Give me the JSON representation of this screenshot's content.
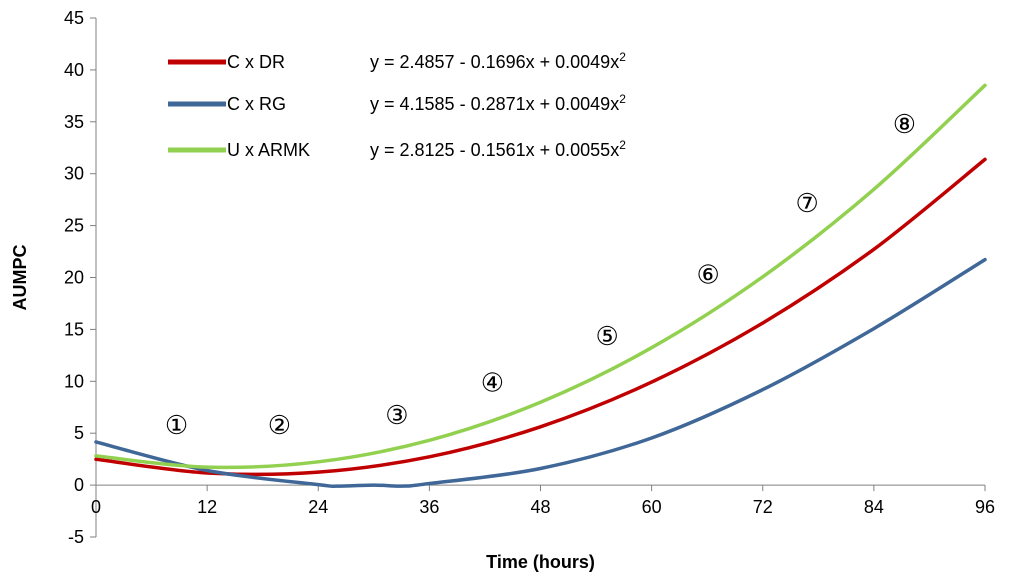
{
  "chart_data": {
    "type": "line",
    "title": "",
    "xlabel": "Time (hours)",
    "ylabel": "AUMPC",
    "xlim": [
      0,
      96
    ],
    "ylim": [
      -5,
      45
    ],
    "x_ticks": [
      0,
      12,
      24,
      36,
      48,
      60,
      72,
      84,
      96
    ],
    "y_ticks": [
      -5,
      0,
      5,
      10,
      15,
      20,
      25,
      30,
      35,
      40,
      45
    ],
    "grid": false,
    "legend_position": "top-left",
    "series": [
      {
        "name": "C x DR",
        "color": "#c00000",
        "equation": {
          "text": "y = 2.4857 - 0.1696x + 0.0049x",
          "sup": "2"
        },
        "x": [
          0,
          12,
          24,
          36,
          48,
          60,
          72,
          84,
          96
        ],
        "y": [
          2.49,
          1.17,
          1.25,
          2.73,
          5.62,
          9.92,
          15.62,
          22.72,
          31.38
        ]
      },
      {
        "name": "C x RG",
        "color": "#3f6797",
        "equation": {
          "text": "y = 4.1585 - 0.2871x + 0.0049x",
          "sup": "2"
        },
        "x": [
          0,
          12,
          24,
          26,
          30,
          33,
          36,
          48,
          60,
          72,
          84,
          96
        ],
        "y": [
          4.16,
          1.41,
          0.05,
          -0.1,
          0.0,
          -0.1,
          0.15,
          1.6,
          4.54,
          9.2,
          15.08,
          21.72
        ]
      },
      {
        "name": "U x ARMK",
        "color": "#92d050",
        "equation": {
          "text": "y = 2.8125 - 0.1561x + 0.0055x",
          "sup": "2"
        },
        "x": [
          0,
          12,
          24,
          36,
          48,
          60,
          72,
          84,
          96
        ],
        "y": [
          2.81,
          1.73,
          2.24,
          4.32,
          7.98,
          13.24,
          20.07,
          28.5,
          38.52
        ]
      }
    ],
    "annotations": [
      {
        "label": "①",
        "x": 8.7,
        "y": 4.9
      },
      {
        "label": "②",
        "x": 19.8,
        "y": 4.9
      },
      {
        "label": "③",
        "x": 32.5,
        "y": 5.9
      },
      {
        "label": "④",
        "x": 42.8,
        "y": 9.0
      },
      {
        "label": "⑤",
        "x": 55.2,
        "y": 13.5
      },
      {
        "label": "⑥",
        "x": 66.1,
        "y": 19.4
      },
      {
        "label": "⑦",
        "x": 76.8,
        "y": 26.3
      },
      {
        "label": "⑧",
        "x": 87.3,
        "y": 33.9
      }
    ]
  }
}
